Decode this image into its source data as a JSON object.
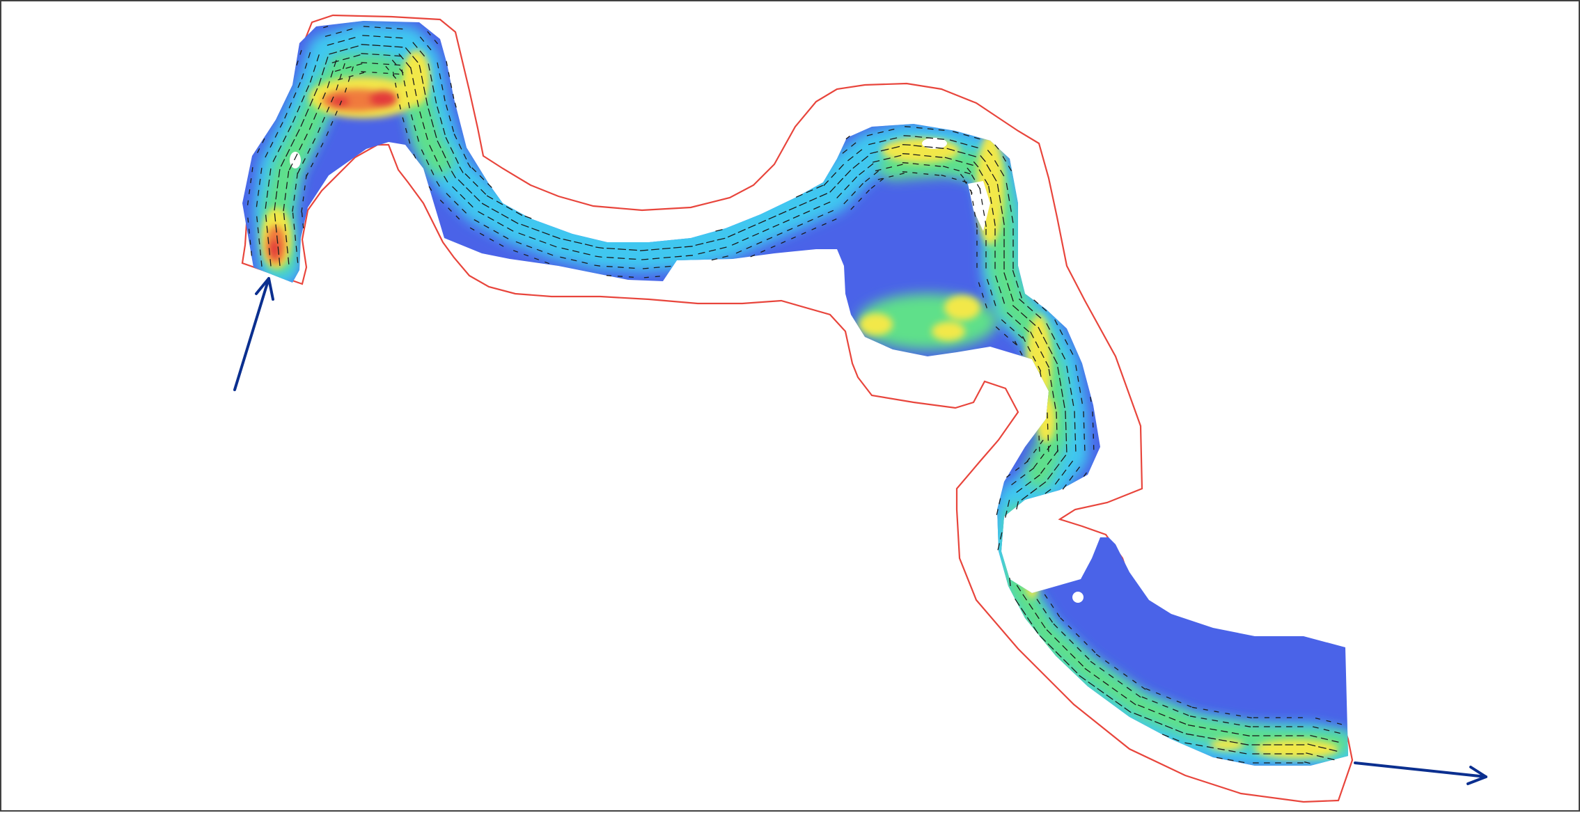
{
  "colors": {
    "boundary": "#e8453c",
    "flow_arrow": "#0b2f8f",
    "vector": "#1a1a1a",
    "depth_low": "#4a63e8",
    "depth_mid_low": "#3fc7f0",
    "depth_mid": "#5fe08a",
    "depth_mid_high": "#f2e84a",
    "depth_high": "#f07a3c",
    "depth_max": "#e33b3b",
    "background": "#ffffff",
    "frame": "#404040"
  },
  "legend": {},
  "flow": {
    "inflow": "upstream-inflow-arrow",
    "outflow": "downstream-outflow-arrow"
  }
}
